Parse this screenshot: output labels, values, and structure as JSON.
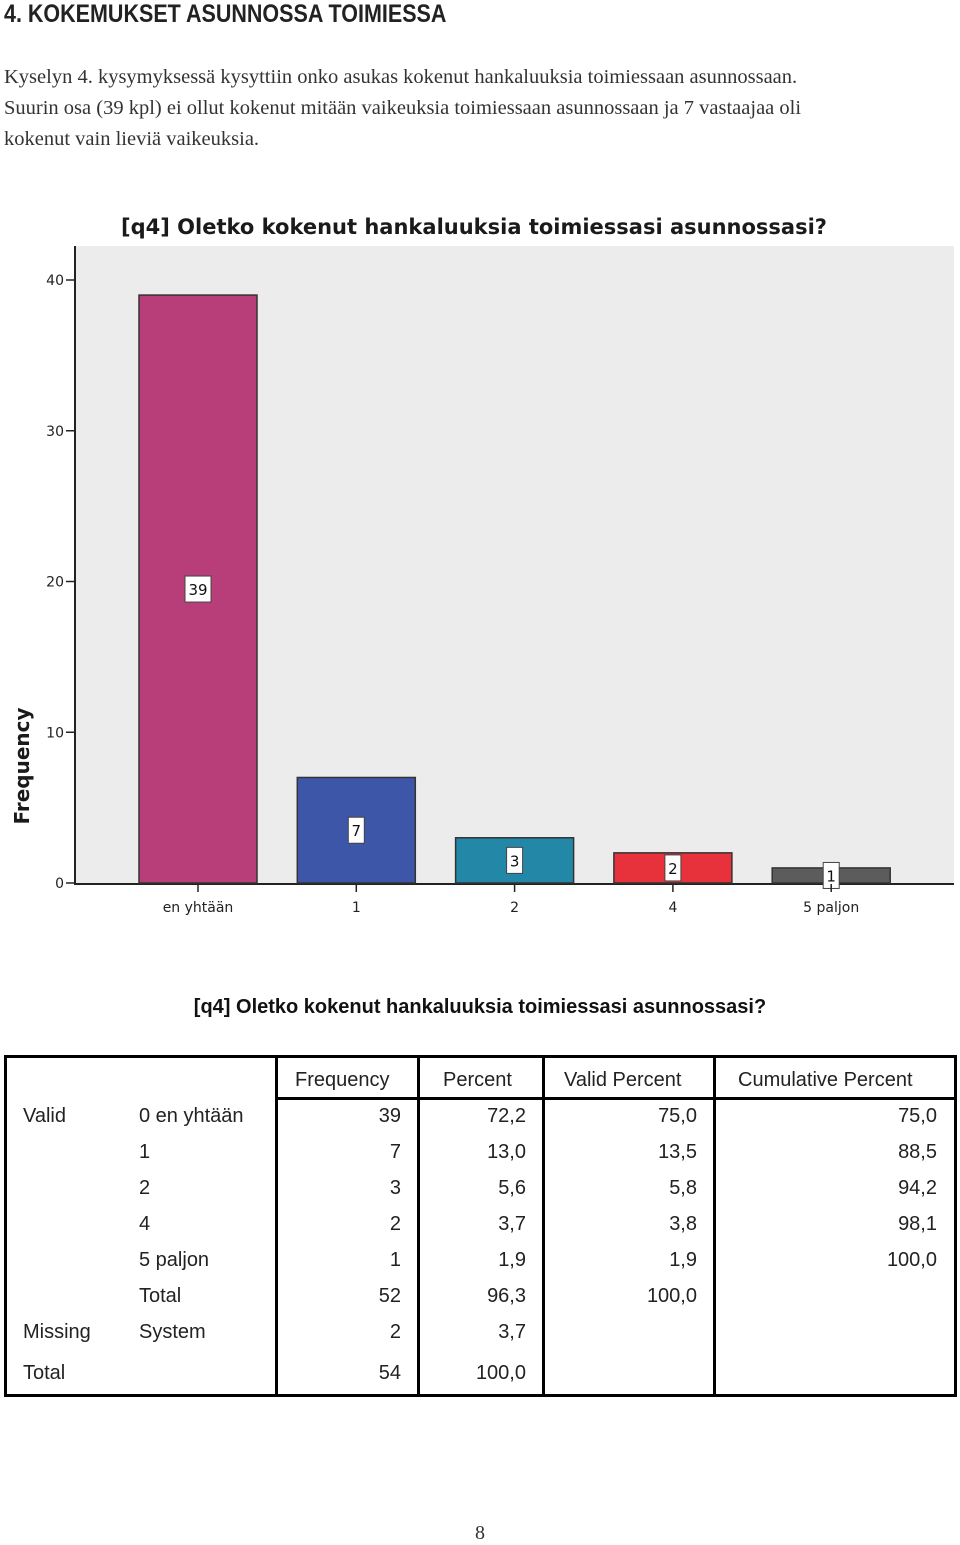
{
  "heading": "4. KOKEMUKSET ASUNNOSSA TOIMIESSA",
  "paragraph_lines": [
    "Kyselyn 4. kysymyksessä kysyttiin onko asukas kokenut hankaluuksia toimiessaan asunnossaan.",
    "Suurin osa (39 kpl) ei ollut kokenut mitään vaikeuksia toimiessaan asunnossaan ja 7 vastaajaa oli",
    "kokenut vain lieviä vaikeuksia."
  ],
  "chart_data": {
    "type": "bar",
    "title": "[q4] Oletko kokenut hankaluuksia toimiessasi asunnossasi?",
    "xlabel": "",
    "ylabel": "Frequency",
    "categories": [
      "en yhtään",
      "1",
      "2",
      "4",
      "5 paljon"
    ],
    "values": [
      39,
      7,
      3,
      2,
      1
    ],
    "bar_colors": [
      "#b83e79",
      "#3d56a8",
      "#2387a7",
      "#e8323b",
      "#5c5c5c"
    ],
    "plot_background": "#ececec",
    "ylim": [
      0,
      40
    ],
    "yticks": [
      0,
      10,
      20,
      30,
      40
    ],
    "data_labels": true,
    "grid": false
  },
  "table": {
    "title": "[q4] Oletko kokenut hankaluuksia toimiessasi asunnossasi?",
    "headers": [
      "Frequency",
      "Percent",
      "Valid Percent",
      "Cumulative Percent"
    ],
    "rows": [
      {
        "group": "Valid",
        "label": "0 en yhtään",
        "frequency": "39",
        "percent": "72,2",
        "valid_percent": "75,0",
        "cumulative_percent": "75,0"
      },
      {
        "group": "",
        "label": "1",
        "frequency": "7",
        "percent": "13,0",
        "valid_percent": "13,5",
        "cumulative_percent": "88,5"
      },
      {
        "group": "",
        "label": "2",
        "frequency": "3",
        "percent": "5,6",
        "valid_percent": "5,8",
        "cumulative_percent": "94,2"
      },
      {
        "group": "",
        "label": "4",
        "frequency": "2",
        "percent": "3,7",
        "valid_percent": "3,8",
        "cumulative_percent": "98,1"
      },
      {
        "group": "",
        "label": "5 paljon",
        "frequency": "1",
        "percent": "1,9",
        "valid_percent": "1,9",
        "cumulative_percent": "100,0"
      },
      {
        "group": "",
        "label": "Total",
        "frequency": "52",
        "percent": "96,3",
        "valid_percent": "100,0",
        "cumulative_percent": ""
      },
      {
        "group": "Missing",
        "label": "System",
        "frequency": "2",
        "percent": "3,7",
        "valid_percent": "",
        "cumulative_percent": ""
      },
      {
        "group": "Total",
        "label": "",
        "frequency": "54",
        "percent": "100,0",
        "valid_percent": "",
        "cumulative_percent": ""
      }
    ]
  },
  "page_number": "8"
}
